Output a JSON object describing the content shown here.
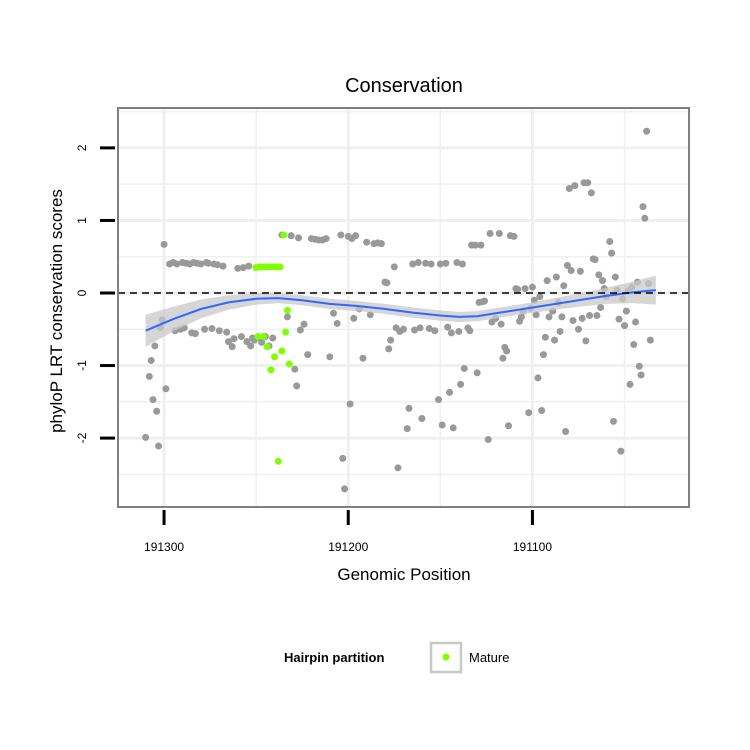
{
  "chart_data": {
    "type": "scatter",
    "title": "Conservation",
    "xlabel": "Genomic Position",
    "ylabel": "phyloP LRT conservation scores",
    "x_reversed": true,
    "xlim": [
      191015,
      191325
    ],
    "ylim": [
      -2.95,
      2.55
    ],
    "x_ticks": [
      191300,
      191200,
      191100
    ],
    "x_tick_labels": [
      "191300",
      "191200",
      "191100"
    ],
    "y_ticks": [
      2,
      1,
      0,
      -1,
      -2
    ],
    "y_tick_labels": [
      "2",
      "1",
      "0",
      "-1",
      "-2"
    ],
    "reference_line": {
      "y": 0,
      "style": "dashed",
      "color": "#000000"
    },
    "grid": true,
    "colors": {
      "background": "#ffffff",
      "gridline": "#f0f0f0",
      "panel_border": "#7f7f7f",
      "other_points": "#999999",
      "mature_points": "#7fff00",
      "smooth_line": "#3366ff",
      "smooth_band": "#c8c8c8"
    },
    "series": [
      {
        "name": "",
        "role": "other",
        "points": [
          [
            191310,
            -1.99
          ],
          [
            191308,
            -1.15
          ],
          [
            191307,
            -0.93
          ],
          [
            191306,
            -1.47
          ],
          [
            191305,
            -0.73
          ],
          [
            191304,
            -1.63
          ],
          [
            191303,
            -2.11
          ],
          [
            191302,
            -0.48
          ],
          [
            191301,
            -0.37
          ],
          [
            191300,
            0.67
          ],
          [
            191299,
            -1.32
          ],
          [
            191297,
            0.4
          ],
          [
            191295,
            0.42
          ],
          [
            191294,
            -0.52
          ],
          [
            191293,
            0.4
          ],
          [
            191291,
            -0.5
          ],
          [
            191290,
            0.42
          ],
          [
            191289,
            -0.48
          ],
          [
            191288,
            0.41
          ],
          [
            191286,
            0.4
          ],
          [
            191285,
            -0.55
          ],
          [
            191284,
            0.42
          ],
          [
            191283,
            -0.56
          ],
          [
            191282,
            0.41
          ],
          [
            191280,
            0.4
          ],
          [
            191278,
            -0.5
          ],
          [
            191277,
            0.42
          ],
          [
            191276,
            0.41
          ],
          [
            191274,
            -0.49
          ],
          [
            191273,
            0.4
          ],
          [
            191271,
            0.39
          ],
          [
            191270,
            -0.52
          ],
          [
            191268,
            0.37
          ],
          [
            191266,
            -0.54
          ],
          [
            191265,
            -0.67
          ],
          [
            191263,
            -0.74
          ],
          [
            191262,
            -0.63
          ],
          [
            191260,
            0.34
          ],
          [
            191258,
            -0.6
          ],
          [
            191257,
            0.35
          ],
          [
            191255,
            -0.67
          ],
          [
            191254,
            0.37
          ],
          [
            191253,
            -0.73
          ],
          [
            191252,
            -0.62
          ],
          [
            191251,
            -0.65
          ],
          [
            191248,
            -0.62
          ],
          [
            191247,
            -0.68
          ],
          [
            191245,
            -0.6
          ],
          [
            191243,
            -0.73
          ],
          [
            191241,
            -0.62
          ],
          [
            191236,
            0.8
          ],
          [
            191233,
            -0.33
          ],
          [
            191231,
            0.79
          ],
          [
            191229,
            -1.05
          ],
          [
            191228,
            -1.28
          ],
          [
            191227,
            0.76
          ],
          [
            191226,
            -0.51
          ],
          [
            191224,
            -0.43
          ],
          [
            191222,
            -0.85
          ],
          [
            191220,
            0.75
          ],
          [
            191218,
            0.74
          ],
          [
            191216,
            0.73
          ],
          [
            191214,
            0.73
          ],
          [
            191212,
            0.75
          ],
          [
            191210,
            -0.88
          ],
          [
            191208,
            -0.28
          ],
          [
            191206,
            -0.42
          ],
          [
            191204,
            0.8
          ],
          [
            191203,
            -2.28
          ],
          [
            191202,
            -2.7
          ],
          [
            191200,
            0.78
          ],
          [
            191199,
            -1.53
          ],
          [
            191198,
            0.75
          ],
          [
            191197,
            -0.35
          ],
          [
            191196,
            0.79
          ],
          [
            191194,
            -0.22
          ],
          [
            191192,
            -0.9
          ],
          [
            191190,
            0.7
          ],
          [
            191188,
            -0.3
          ],
          [
            191186,
            0.68
          ],
          [
            191184,
            0.69
          ],
          [
            191182,
            0.68
          ],
          [
            191180,
            0.15
          ],
          [
            191179,
            0.14
          ],
          [
            191178,
            -0.77
          ],
          [
            191177,
            -0.65
          ],
          [
            191175,
            0.36
          ],
          [
            191174,
            -0.48
          ],
          [
            191173,
            -2.41
          ],
          [
            191172,
            -0.53
          ],
          [
            191170,
            -0.5
          ],
          [
            191168,
            -1.87
          ],
          [
            191167,
            -1.59
          ],
          [
            191165,
            0.4
          ],
          [
            191164,
            -0.51
          ],
          [
            191162,
            0.42
          ],
          [
            191161,
            -0.48
          ],
          [
            191160,
            -1.73
          ],
          [
            191158,
            0.41
          ],
          [
            191156,
            -0.49
          ],
          [
            191155,
            0.4
          ],
          [
            191153,
            -0.52
          ],
          [
            191151,
            -1.47
          ],
          [
            191150,
            0.4
          ],
          [
            191149,
            -1.82
          ],
          [
            191147,
            0.41
          ],
          [
            191146,
            -0.47
          ],
          [
            191145,
            -1.37
          ],
          [
            191144,
            -0.55
          ],
          [
            191143,
            -1.86
          ],
          [
            191141,
            0.42
          ],
          [
            191140,
            -0.53
          ],
          [
            191139,
            -1.26
          ],
          [
            191138,
            0.4
          ],
          [
            191137,
            -1.04
          ],
          [
            191135,
            -0.48
          ],
          [
            191134,
            -0.52
          ],
          [
            191133,
            0.66
          ],
          [
            191131,
            0.66
          ],
          [
            191130,
            -1.1
          ],
          [
            191129,
            -0.13
          ],
          [
            191128,
            0.66
          ],
          [
            191127,
            -0.12
          ],
          [
            191126,
            -0.11
          ],
          [
            191124,
            -2.02
          ],
          [
            191123,
            0.82
          ],
          [
            191122,
            -0.4
          ],
          [
            191120,
            -0.35
          ],
          [
            191118,
            0.82
          ],
          [
            191117,
            -0.43
          ],
          [
            191116,
            -0.9
          ],
          [
            191115,
            -0.75
          ],
          [
            191114,
            -0.8
          ],
          [
            191113,
            -1.83
          ],
          [
            191112,
            0.79
          ],
          [
            191110,
            0.78
          ],
          [
            191109,
            0.06
          ],
          [
            191108,
            0.05
          ],
          [
            191107,
            -0.39
          ],
          [
            191106,
            -0.33
          ],
          [
            191105,
            -0.25
          ],
          [
            191104,
            0.06
          ],
          [
            191102,
            -1.65
          ],
          [
            191101,
            -0.21
          ],
          [
            191100,
            0.08
          ],
          [
            191099,
            -0.1
          ],
          [
            191098,
            -0.3
          ],
          [
            191097,
            -1.17
          ],
          [
            191096,
            -0.05
          ],
          [
            191095,
            -1.62
          ],
          [
            191094,
            -0.85
          ],
          [
            191093,
            -0.61
          ],
          [
            191092,
            0.17
          ],
          [
            191091,
            -0.33
          ],
          [
            191089,
            -0.25
          ],
          [
            191088,
            -0.65
          ],
          [
            191087,
            0.22
          ],
          [
            191086,
            -0.13
          ],
          [
            191085,
            -0.53
          ],
          [
            191084,
            -0.33
          ],
          [
            191083,
            0.1
          ],
          [
            191082,
            -1.91
          ],
          [
            191081,
            0.38
          ],
          [
            191080,
            1.44
          ],
          [
            191079,
            0.31
          ],
          [
            191078,
            -0.38
          ],
          [
            191077,
            1.48
          ],
          [
            191075,
            -0.5
          ],
          [
            191074,
            0.3
          ],
          [
            191073,
            -0.35
          ],
          [
            191072,
            1.52
          ],
          [
            191071,
            -0.66
          ],
          [
            191070,
            1.52
          ],
          [
            191069,
            -0.31
          ],
          [
            191068,
            1.38
          ],
          [
            191067,
            0.47
          ],
          [
            191066,
            0.46
          ],
          [
            191065,
            -0.31
          ],
          [
            191064,
            0.25
          ],
          [
            191063,
            -0.2
          ],
          [
            191062,
            0.17
          ],
          [
            191061,
            0.06
          ],
          [
            191060,
            -0.05
          ],
          [
            191058,
            0.71
          ],
          [
            191057,
            0.55
          ],
          [
            191056,
            -1.77
          ],
          [
            191055,
            0.22
          ],
          [
            191054,
            0.04
          ],
          [
            191053,
            -0.36
          ],
          [
            191052,
            -2.18
          ],
          [
            191051,
            -0.08
          ],
          [
            191050,
            -0.45
          ],
          [
            191049,
            -0.25
          ],
          [
            191048,
            0.03
          ],
          [
            191047,
            -1.26
          ],
          [
            191046,
            0.08
          ],
          [
            191045,
            -0.71
          ],
          [
            191044,
            -0.4
          ],
          [
            191043,
            0.15
          ],
          [
            191042,
            -1.01
          ],
          [
            191041,
            -1.13
          ],
          [
            191040,
            1.19
          ],
          [
            191039,
            1.03
          ],
          [
            191038,
            2.23
          ],
          [
            191037,
            0.13
          ],
          [
            191036,
            -0.65
          ]
        ]
      },
      {
        "name": "Mature",
        "role": "mature",
        "points": [
          [
            191250,
            0.35
          ],
          [
            191249,
            -0.6
          ],
          [
            191248,
            0.36
          ],
          [
            191247,
            0.36
          ],
          [
            191246,
            -0.6
          ],
          [
            191245,
            0.36
          ],
          [
            191244,
            -0.74
          ],
          [
            191243,
            0.36
          ],
          [
            191242,
            -1.06
          ],
          [
            191241,
            0.36
          ],
          [
            191240,
            -0.88
          ],
          [
            191239,
            0.36
          ],
          [
            191238,
            -2.32
          ],
          [
            191237,
            0.36
          ],
          [
            191236,
            -0.8
          ],
          [
            191235,
            0.8
          ],
          [
            191234,
            -0.54
          ],
          [
            191233,
            -0.24
          ],
          [
            191232,
            -0.98
          ]
        ]
      }
    ],
    "smooth": {
      "method": "loess",
      "fit": [
        [
          191310,
          -0.52
        ],
        [
          191295,
          -0.36
        ],
        [
          191280,
          -0.22
        ],
        [
          191265,
          -0.13
        ],
        [
          191250,
          -0.08
        ],
        [
          191238,
          -0.07
        ],
        [
          191225,
          -0.1
        ],
        [
          191210,
          -0.15
        ],
        [
          191195,
          -0.18
        ],
        [
          191180,
          -0.22
        ],
        [
          191165,
          -0.27
        ],
        [
          191150,
          -0.31
        ],
        [
          191140,
          -0.33
        ],
        [
          191130,
          -0.32
        ],
        [
          191120,
          -0.28
        ],
        [
          191105,
          -0.22
        ],
        [
          191090,
          -0.16
        ],
        [
          191075,
          -0.1
        ],
        [
          191060,
          -0.04
        ],
        [
          191045,
          0.01
        ],
        [
          191033,
          0.04
        ]
      ],
      "band_halfwidth": [
        0.22,
        0.17,
        0.13,
        0.1,
        0.08,
        0.07,
        0.07,
        0.07,
        0.07,
        0.07,
        0.07,
        0.07,
        0.07,
        0.07,
        0.07,
        0.07,
        0.08,
        0.09,
        0.11,
        0.15,
        0.2
      ]
    },
    "legend": {
      "title": "Hairpin partition",
      "entries": [
        "Mature"
      ],
      "position": "bottom"
    }
  }
}
